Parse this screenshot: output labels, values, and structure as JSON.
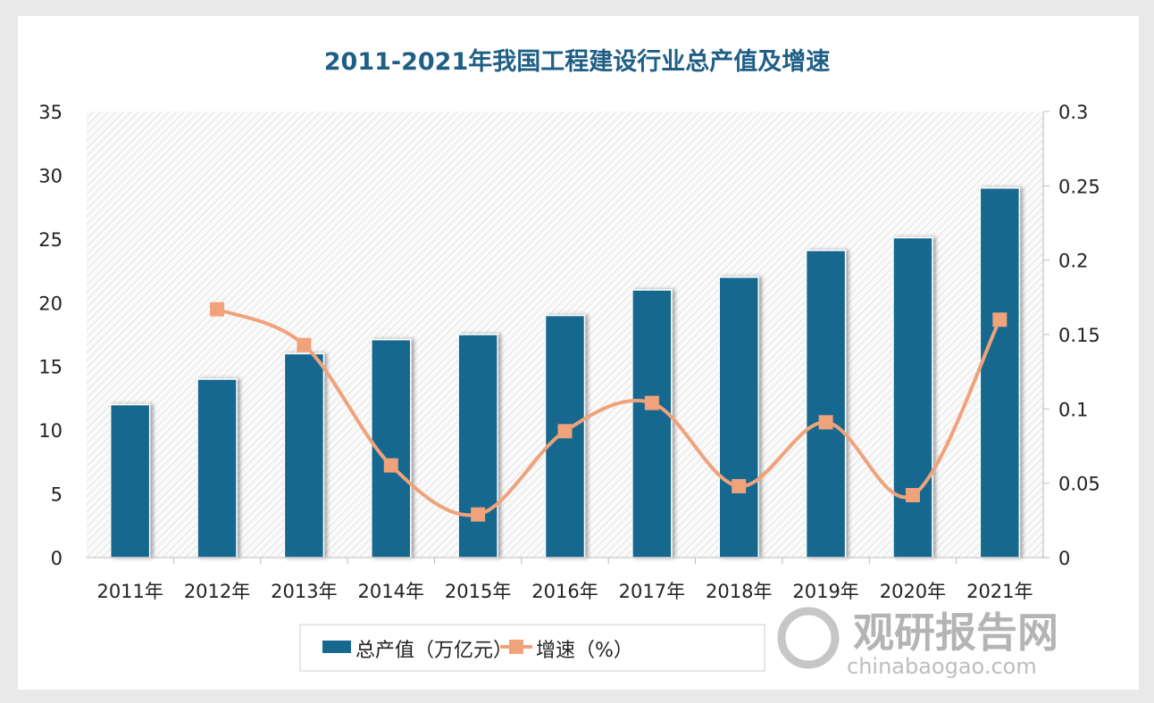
{
  "chart_data": {
    "type": "bar+line",
    "title": "2011-2021年我国工程建设行业总产值及增速",
    "categories": [
      "2011年",
      "2012年",
      "2013年",
      "2014年",
      "2015年",
      "2016年",
      "2017年",
      "2018年",
      "2019年",
      "2020年",
      "2021年"
    ],
    "series": [
      {
        "name": "总产值（万亿元）",
        "type": "bar",
        "axis": "left",
        "color": "#17678f",
        "values": [
          12,
          14,
          16,
          17.1,
          17.5,
          19,
          21,
          22,
          24.1,
          25.1,
          29
        ]
      },
      {
        "name": "增速（%）",
        "type": "line",
        "axis": "right",
        "color": "#f0a27a",
        "smooth": true,
        "values": [
          null,
          0.167,
          0.143,
          0.062,
          0.029,
          0.085,
          0.104,
          0.048,
          0.091,
          0.042,
          0.16
        ]
      }
    ],
    "ylim_left": [
      0,
      35
    ],
    "yticks_left": [
      "0",
      "5",
      "10",
      "15",
      "20",
      "25",
      "30",
      "35"
    ],
    "ylim_right": [
      0,
      0.3
    ],
    "yticks_right": [
      "0",
      "0.05",
      "0.1",
      "0.15",
      "0.2",
      "0.25",
      "0.3"
    ],
    "legend_position": "bottom"
  },
  "watermark": {
    "brand": "观研报告网",
    "url": "chinabaogao.com"
  }
}
